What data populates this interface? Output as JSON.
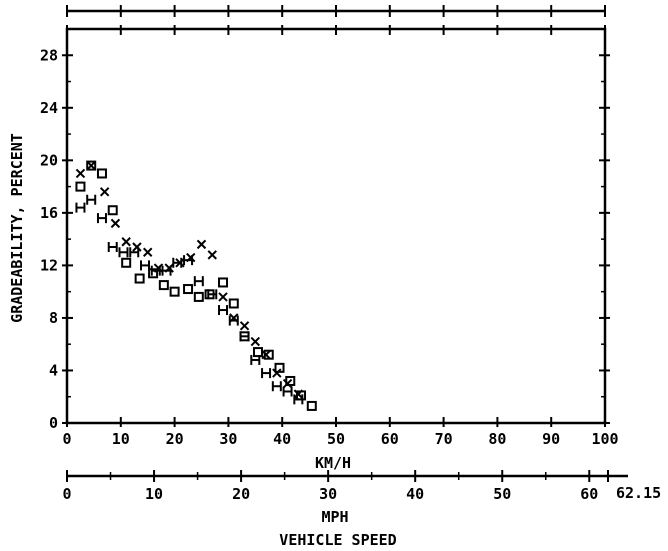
{
  "chart_data": {
    "type": "scatter",
    "title": "",
    "xlabel": "KM/H",
    "x2label": "MPH",
    "caption": "VEHICLE SPEED",
    "ylabel": "GRADEABILITY, PERCENT",
    "xlim": [
      0,
      100
    ],
    "ylim": [
      0,
      30
    ],
    "x2lim": [
      0,
      62.15
    ],
    "x2_end_label": "62.15",
    "x_ticks": [
      "0",
      "10",
      "20",
      "30",
      "40",
      "50",
      "60",
      "70",
      "80",
      "90",
      "100"
    ],
    "x2_ticks": [
      "0",
      "10",
      "20",
      "30",
      "40",
      "50",
      "60"
    ],
    "y_ticks": [
      "0",
      "4",
      "8",
      "12",
      "16",
      "20",
      "24",
      "28"
    ],
    "grid": false,
    "legend": "none",
    "series": [
      {
        "marker": "square",
        "points": [
          {
            "x": 2.5,
            "y": 18.0
          },
          {
            "x": 4.5,
            "y": 19.6
          },
          {
            "x": 6.5,
            "y": 19.0
          },
          {
            "x": 8.5,
            "y": 16.2
          },
          {
            "x": 11.0,
            "y": 12.2
          },
          {
            "x": 13.5,
            "y": 11.0
          },
          {
            "x": 16.0,
            "y": 11.4
          },
          {
            "x": 18.0,
            "y": 10.5
          },
          {
            "x": 20.0,
            "y": 10.0
          },
          {
            "x": 22.5,
            "y": 10.2
          },
          {
            "x": 24.5,
            "y": 9.6
          },
          {
            "x": 26.5,
            "y": 9.8
          },
          {
            "x": 29.0,
            "y": 10.7
          },
          {
            "x": 31.0,
            "y": 9.1
          },
          {
            "x": 33.0,
            "y": 6.6
          },
          {
            "x": 35.5,
            "y": 5.4
          },
          {
            "x": 37.5,
            "y": 5.2
          },
          {
            "x": 39.5,
            "y": 4.2
          },
          {
            "x": 41.5,
            "y": 3.2
          },
          {
            "x": 43.5,
            "y": 2.1
          },
          {
            "x": 45.5,
            "y": 1.3
          }
        ]
      },
      {
        "marker": "x",
        "points": [
          {
            "x": 2.5,
            "y": 19.0
          },
          {
            "x": 4.5,
            "y": 19.6
          },
          {
            "x": 7.0,
            "y": 17.6
          },
          {
            "x": 9.0,
            "y": 15.2
          },
          {
            "x": 11.0,
            "y": 13.8
          },
          {
            "x": 13.0,
            "y": 13.4
          },
          {
            "x": 15.0,
            "y": 13.0
          },
          {
            "x": 17.0,
            "y": 11.8
          },
          {
            "x": 19.0,
            "y": 11.8
          },
          {
            "x": 21.0,
            "y": 12.2
          },
          {
            "x": 23.0,
            "y": 12.6
          },
          {
            "x": 25.0,
            "y": 13.6
          },
          {
            "x": 27.0,
            "y": 12.8
          },
          {
            "x": 29.0,
            "y": 9.6
          },
          {
            "x": 31.0,
            "y": 8.0
          },
          {
            "x": 33.0,
            "y": 7.4
          },
          {
            "x": 35.0,
            "y": 6.2
          },
          {
            "x": 37.0,
            "y": 5.2
          },
          {
            "x": 39.0,
            "y": 3.8
          },
          {
            "x": 41.0,
            "y": 3.0
          },
          {
            "x": 43.0,
            "y": 2.2
          }
        ]
      },
      {
        "marker": "H",
        "points": [
          {
            "x": 2.5,
            "y": 16.4
          },
          {
            "x": 4.5,
            "y": 17.0
          },
          {
            "x": 6.5,
            "y": 15.6
          },
          {
            "x": 8.5,
            "y": 13.4
          },
          {
            "x": 10.5,
            "y": 13.0
          },
          {
            "x": 12.5,
            "y": 13.0
          },
          {
            "x": 14.5,
            "y": 12.0
          },
          {
            "x": 16.5,
            "y": 11.6
          },
          {
            "x": 18.5,
            "y": 11.6
          },
          {
            "x": 20.5,
            "y": 12.2
          },
          {
            "x": 22.5,
            "y": 12.4
          },
          {
            "x": 24.5,
            "y": 10.8
          },
          {
            "x": 27.0,
            "y": 9.8
          },
          {
            "x": 29.0,
            "y": 8.6
          },
          {
            "x": 31.0,
            "y": 7.8
          },
          {
            "x": 33.0,
            "y": 6.6
          },
          {
            "x": 35.0,
            "y": 4.8
          },
          {
            "x": 37.0,
            "y": 3.8
          },
          {
            "x": 39.0,
            "y": 2.8
          },
          {
            "x": 41.0,
            "y": 2.4
          },
          {
            "x": 43.0,
            "y": 1.8
          }
        ]
      }
    ]
  }
}
